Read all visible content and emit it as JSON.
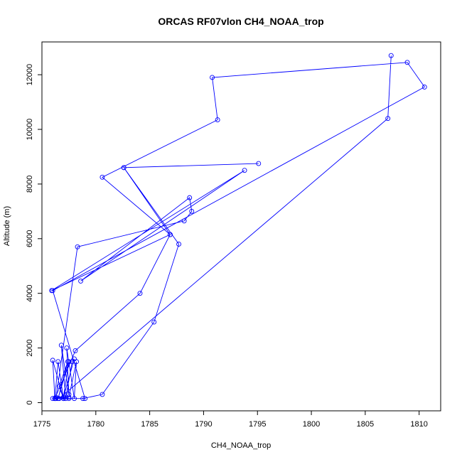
{
  "chart_data": {
    "type": "line",
    "title": "ORCAS RF07vlon CH4_NOAA_trop",
    "xlabel": "CH4_NOAA_trop",
    "ylabel": "Altitude (m)",
    "xlim": [
      1775,
      1812
    ],
    "ylim": [
      -300,
      13200
    ],
    "xticks": [
      1775,
      1780,
      1785,
      1790,
      1795,
      1800,
      1805,
      1810
    ],
    "yticks": [
      0,
      2000,
      4000,
      6000,
      8000,
      10000,
      12000
    ],
    "grid": false,
    "series_color": "#0000ff",
    "series": [
      {
        "marker": "open-circle",
        "points": [
          [
            1776.0,
            150
          ],
          [
            1777.5,
            150
          ],
          [
            1776.3,
            200
          ],
          [
            1777.0,
            150
          ],
          [
            1776.6,
            600
          ],
          [
            1777.4,
            1500
          ],
          [
            1776.5,
            150
          ],
          [
            1777.5,
            1500
          ],
          [
            1777.0,
            200
          ],
          [
            1778.0,
            1600
          ],
          [
            1777.8,
            1500
          ],
          [
            1777.2,
            150
          ],
          [
            1776.8,
            2100
          ],
          [
            1777.5,
            300
          ],
          [
            1777.3,
            2000
          ],
          [
            1778.0,
            150
          ],
          [
            1778.2,
            1500
          ],
          [
            1777.5,
            200
          ],
          [
            1776.2,
            150
          ],
          [
            1776.5,
            1500
          ],
          [
            1777.0,
            150
          ],
          [
            1776.0,
            1550
          ],
          [
            1776.2,
            150
          ],
          [
            1778.8,
            150
          ],
          [
            1780.6,
            300
          ],
          [
            1785.4,
            2950
          ],
          [
            1787.7,
            5800
          ],
          [
            1782.6,
            8600
          ],
          [
            1795.1,
            8750
          ],
          [
            1782.6,
            8600
          ],
          [
            1786.9,
            6150
          ],
          [
            1780.6,
            8250
          ],
          [
            1791.3,
            10350
          ],
          [
            1790.8,
            11900
          ],
          [
            1808.9,
            12450
          ],
          [
            1810.5,
            11550
          ],
          [
            1776.0,
            4100
          ],
          [
            1779.0,
            150
          ],
          [
            1776.2,
            150
          ],
          [
            1778.1,
            1900
          ],
          [
            1784.1,
            4000
          ],
          [
            1786.9,
            6150
          ],
          [
            1775.9,
            4100
          ],
          [
            1793.8,
            8500
          ],
          [
            1778.6,
            4450
          ],
          [
            1788.7,
            7500
          ],
          [
            1788.9,
            7000
          ],
          [
            1788.2,
            6650
          ],
          [
            1778.3,
            5700
          ],
          [
            1776.3,
            150
          ],
          [
            1776.6,
            150
          ],
          [
            1807.1,
            10400
          ],
          [
            1807.4,
            12700
          ]
        ]
      }
    ]
  }
}
